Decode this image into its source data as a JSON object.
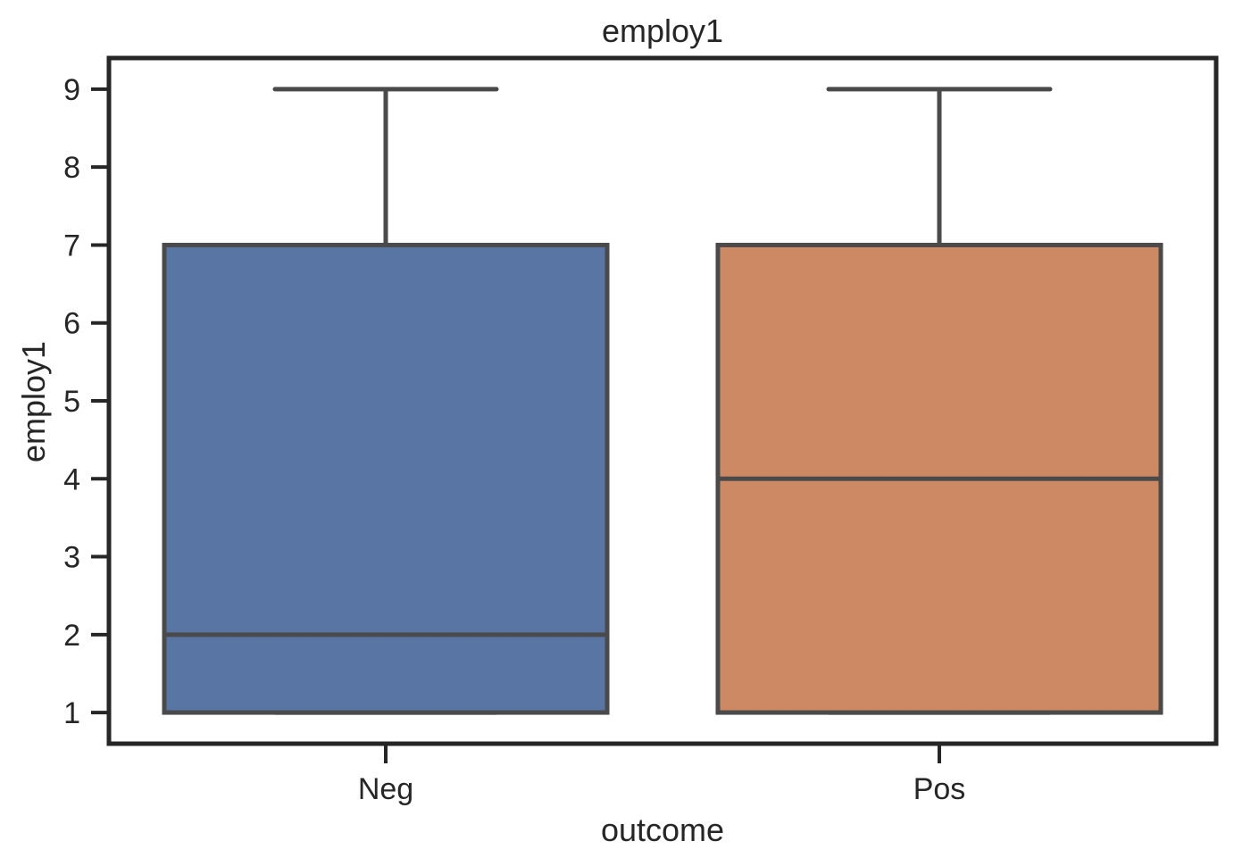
{
  "chart_data": {
    "type": "box",
    "title": "employ1",
    "xlabel": "outcome",
    "ylabel": "employ1",
    "categories": [
      "Neg",
      "Pos"
    ],
    "boxes": [
      {
        "category": "Neg",
        "whisker_low": 1,
        "q1": 1,
        "median": 2,
        "q3": 7,
        "whisker_high": 9,
        "color": "#5975a4"
      },
      {
        "category": "Pos",
        "whisker_low": 1,
        "q1": 1,
        "median": 4,
        "q3": 7,
        "whisker_high": 9,
        "color": "#cc8963"
      }
    ],
    "yticks": [
      "1",
      "2",
      "3",
      "4",
      "5",
      "6",
      "7",
      "8",
      "9"
    ],
    "ylim": [
      0.6,
      9.4
    ],
    "grid": false,
    "colors": {
      "edge": "#4a4a4a",
      "frame": "#262626"
    }
  }
}
